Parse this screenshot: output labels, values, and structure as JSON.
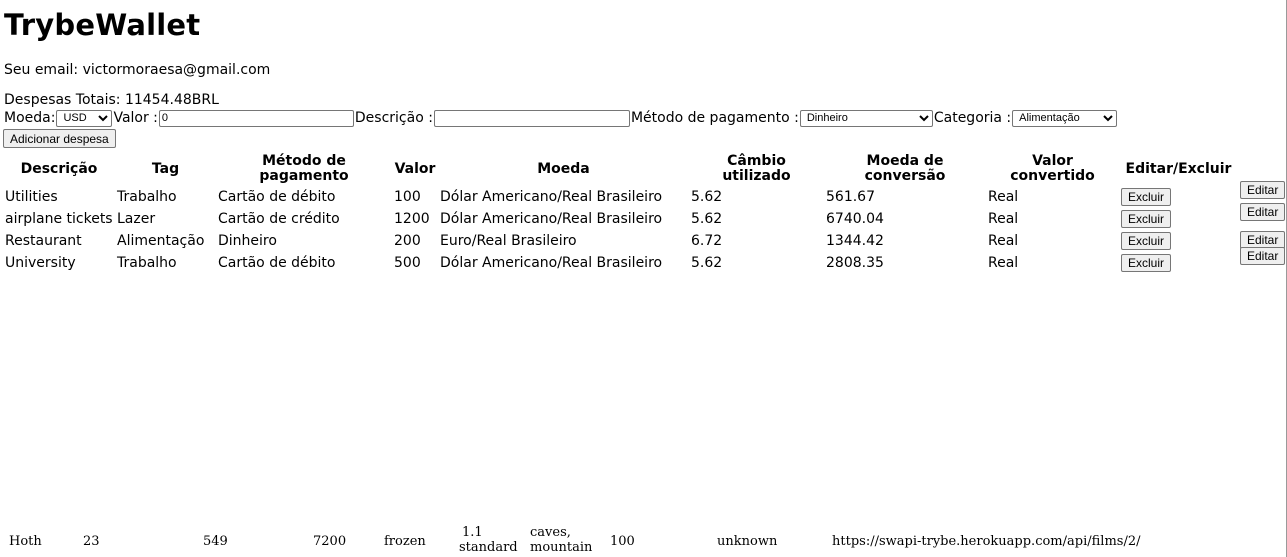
{
  "header": {
    "title": "TrybeWallet",
    "email_label": "Seu email: victormoraesa@gmail.com",
    "total_label": "Despesas Totais: 11454.48BRL"
  },
  "form": {
    "moeda_label": "Moeda:",
    "moeda_value": "USD",
    "valor_label": "Valor :",
    "valor_value": "0",
    "descricao_label": "Descrição :",
    "descricao_value": "",
    "metodo_label": "Método de pagamento :",
    "metodo_value": "Dinheiro",
    "categoria_label": "Categoria :",
    "categoria_value": "Alimentação",
    "add_button": "Adicionar despesa"
  },
  "table": {
    "headers": [
      "Descrição",
      "Tag",
      "Método de pagamento",
      "Valor",
      "Moeda",
      "Câmbio utilizado",
      "Moeda de conversão",
      "Valor convertido",
      "Editar/Excluir"
    ],
    "rows": [
      {
        "descricao": "Utilities",
        "tag": "Trabalho",
        "metodo": "Cartão de débito",
        "valor": "100",
        "moeda": "Dólar Americano/Real Brasileiro",
        "cambio": "5.62",
        "conversao": "561.67",
        "convertido": "Real"
      },
      {
        "descricao": "airplane tickets",
        "tag": "Lazer",
        "metodo": "Cartão de crédito",
        "valor": "1200",
        "moeda": "Dólar Americano/Real Brasileiro",
        "cambio": "5.62",
        "conversao": "6740.04",
        "convertido": "Real"
      },
      {
        "descricao": "Restaurant",
        "tag": "Alimentação",
        "metodo": "Dinheiro",
        "valor": "200",
        "moeda": "Euro/Real Brasileiro",
        "cambio": "6.72",
        "conversao": "1344.42",
        "convertido": "Real"
      },
      {
        "descricao": "University",
        "tag": "Trabalho",
        "metodo": "Cartão de débito",
        "valor": "500",
        "moeda": "Dólar Americano/Real Brasileiro",
        "cambio": "5.62",
        "conversao": "2808.35",
        "convertido": "Real"
      }
    ],
    "excluir_label": "Excluir",
    "editar_label": "Editar"
  },
  "planet_row": {
    "name": "Hoth",
    "rotation": "23",
    "orbital": "549",
    "diameter": "7200",
    "climate": "frozen",
    "gravity_line1": "1.1",
    "gravity_line2": "standard",
    "terrain_line1": "caves,",
    "terrain_line2": "mountain",
    "surface_water": "100",
    "population": "unknown",
    "films": "https://swapi-trybe.herokuapp.com/api/films/2/"
  }
}
